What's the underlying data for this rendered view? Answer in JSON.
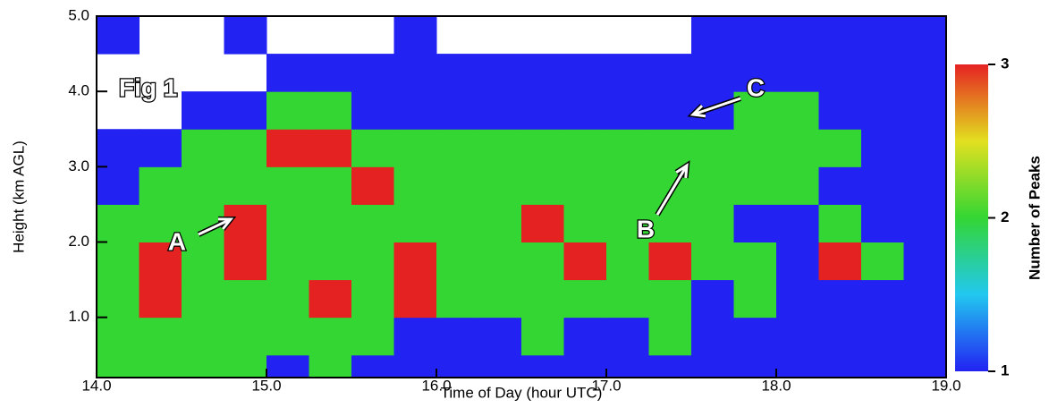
{
  "chart_data": {
    "type": "heatmap",
    "xlabel": "Time of Day (hour UTC)",
    "ylabel": "Height (km AGL)",
    "x_bins": [
      14.0,
      14.25,
      14.5,
      14.75,
      15.0,
      15.25,
      15.5,
      15.75,
      16.0,
      16.25,
      16.5,
      16.75,
      17.0,
      17.25,
      17.5,
      17.75,
      18.0,
      18.25,
      18.5,
      18.75,
      19.0
    ],
    "y_bins": [
      0.2,
      0.5,
      1.0,
      1.5,
      2.0,
      2.5,
      3.0,
      3.5,
      4.0,
      4.5,
      5.0
    ],
    "values": [
      [
        2,
        2,
        2,
        2,
        1,
        2,
        1,
        1,
        1,
        1,
        1,
        1,
        1,
        1,
        1,
        1,
        1,
        1,
        1,
        1
      ],
      [
        2,
        2,
        2,
        2,
        2,
        2,
        2,
        1,
        1,
        1,
        2,
        1,
        1,
        2,
        1,
        1,
        1,
        1,
        1,
        1
      ],
      [
        2,
        3,
        2,
        2,
        2,
        3,
        2,
        3,
        2,
        2,
        2,
        2,
        2,
        2,
        1,
        2,
        1,
        1,
        1,
        1
      ],
      [
        2,
        3,
        2,
        3,
        2,
        2,
        2,
        3,
        2,
        2,
        2,
        3,
        2,
        3,
        2,
        2,
        1,
        3,
        2,
        1
      ],
      [
        2,
        2,
        2,
        3,
        2,
        2,
        2,
        2,
        2,
        2,
        3,
        2,
        2,
        2,
        2,
        1,
        1,
        2,
        1,
        1
      ],
      [
        1,
        2,
        2,
        2,
        2,
        2,
        3,
        2,
        2,
        2,
        2,
        2,
        2,
        2,
        2,
        2,
        2,
        1,
        1,
        1
      ],
      [
        1,
        1,
        2,
        2,
        3,
        3,
        2,
        2,
        2,
        2,
        2,
        2,
        2,
        2,
        2,
        2,
        2,
        2,
        1,
        1
      ],
      [
        null,
        null,
        1,
        1,
        2,
        2,
        1,
        1,
        1,
        1,
        1,
        1,
        1,
        1,
        1,
        2,
        2,
        1,
        1,
        1
      ],
      [
        null,
        null,
        null,
        null,
        1,
        1,
        1,
        1,
        1,
        1,
        1,
        1,
        1,
        1,
        1,
        1,
        1,
        1,
        1,
        1
      ],
      [
        1,
        null,
        null,
        1,
        null,
        null,
        null,
        1,
        null,
        null,
        null,
        null,
        null,
        null,
        1,
        1,
        1,
        1,
        1,
        1
      ]
    ],
    "xlim": [
      14.0,
      19.0
    ],
    "xticks": [
      {
        "value": 14,
        "label": "14.0"
      },
      {
        "value": 15,
        "label": "15.0"
      },
      {
        "value": 16,
        "label": "16.0"
      },
      {
        "value": 17,
        "label": "17.0"
      },
      {
        "value": 18,
        "label": "18.0"
      },
      {
        "value": 19,
        "label": "19.0"
      }
    ],
    "ylim": [
      0.2,
      5.0
    ],
    "yticks": [
      {
        "value": 1,
        "label": "1.0"
      },
      {
        "value": 2,
        "label": "2.0"
      },
      {
        "value": 3,
        "label": "3.0"
      },
      {
        "value": 4,
        "label": "4.0"
      },
      {
        "value": 5,
        "label": "5.0"
      }
    ],
    "colorbar_label": "Number of Peaks",
    "zlim": [
      1,
      3
    ],
    "zticks": [
      1,
      2,
      3
    ],
    "colorscale": [
      "#2222f2",
      "#22c8f0",
      "#33d633",
      "#e2e020",
      "#e52222"
    ],
    "annotations": [
      "Fig 1",
      "A",
      "B",
      "C"
    ]
  }
}
